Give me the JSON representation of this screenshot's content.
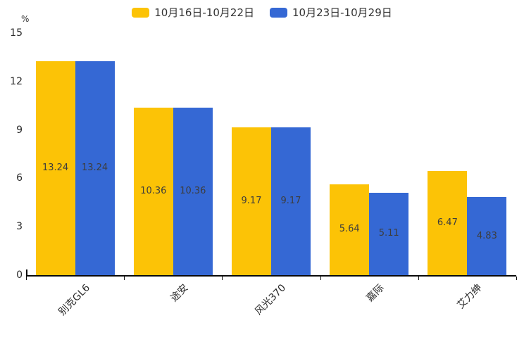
{
  "chart_data": {
    "type": "bar",
    "title": "",
    "unit_label": "%",
    "categories": [
      "别克GL6",
      "途安",
      "风光370",
      "嘉际",
      "艾力绅"
    ],
    "series": [
      {
        "name": "10月16日-10月22日",
        "color": "#FCC306",
        "values": [
          13.24,
          10.36,
          9.17,
          5.64,
          6.47
        ]
      },
      {
        "name": "10月23日-10月29日",
        "color": "#3568D4",
        "values": [
          13.24,
          10.36,
          9.17,
          5.11,
          4.83
        ]
      }
    ],
    "value_labels": [
      "13.24",
      "10.36",
      "9.17",
      "5.64",
      "6.47",
      "13.24",
      "10.36",
      "9.17",
      "5.11",
      "4.83"
    ],
    "ylim": [
      0,
      15
    ],
    "yticks": [
      "0",
      "3",
      "6",
      "9",
      "12",
      "15"
    ],
    "grid": false,
    "legend_position": "top",
    "value_label_position": "inside-center",
    "axis_text_color": "#2b2b2b",
    "axis_line_color": "#0a0a0a"
  }
}
